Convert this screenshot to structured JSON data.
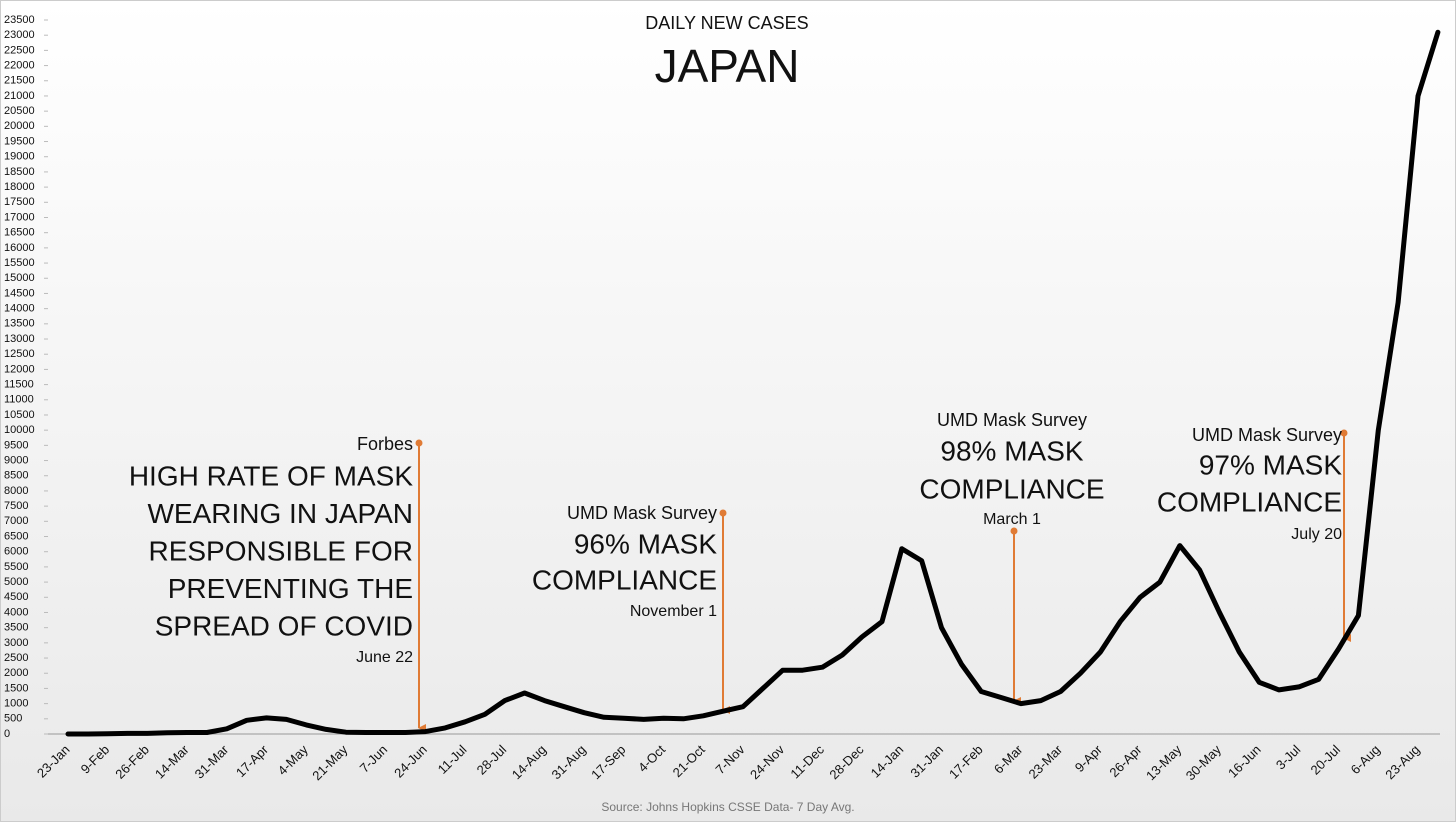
{
  "chart_data": {
    "type": "line",
    "subtitle": "DAILY NEW CASES",
    "title": "JAPAN",
    "source": "Source: Johns Hopkins CSSE Data- 7 Day Avg.",
    "categories": [
      "23-Jan",
      null,
      "9-Feb",
      null,
      "26-Feb",
      null,
      "14-Mar",
      null,
      "31-Mar",
      null,
      "17-Apr",
      null,
      "4-May",
      null,
      "21-May",
      null,
      "7-Jun",
      null,
      "24-Jun",
      null,
      "11-Jul",
      null,
      "28-Jul",
      null,
      "14-Aug",
      null,
      "31-Aug",
      null,
      "17-Sep",
      null,
      "4-Oct",
      null,
      "21-Oct",
      null,
      "7-Nov",
      null,
      "24-Nov",
      null,
      "11-Dec",
      null,
      "28-Dec",
      null,
      "14-Jan",
      null,
      "31-Jan",
      null,
      "17-Feb",
      null,
      "6-Mar",
      null,
      "23-Mar",
      null,
      "9-Apr",
      null,
      "26-Apr",
      null,
      "13-May",
      null,
      "30-May",
      null,
      "16-Jun",
      null,
      "3-Jul",
      null,
      "20-Jul",
      null,
      "6-Aug",
      null,
      "23-Aug",
      null
    ],
    "series": [
      {
        "color": "#000000",
        "values": [
          0,
          0,
          10,
          20,
          20,
          40,
          50,
          50,
          170,
          450,
          530,
          480,
          300,
          150,
          60,
          50,
          50,
          50,
          80,
          200,
          400,
          650,
          1100,
          1350,
          1100,
          900,
          700,
          550,
          520,
          480,
          520,
          500,
          600,
          750,
          900,
          1500,
          2100,
          2100,
          2200,
          2600,
          3200,
          3700,
          6100,
          5700,
          3500,
          2300,
          1400,
          1200,
          1000,
          1100,
          1400,
          2000,
          2700,
          3700,
          4500,
          5000,
          6200,
          5400,
          4000,
          2700,
          1700,
          1450,
          1550,
          1800,
          2800,
          3900,
          10000,
          14200,
          21000,
          23100
        ]
      }
    ],
    "ylim": [
      0,
      23500
    ],
    "yticks": [
      0,
      500,
      1000,
      1500,
      2000,
      2500,
      3000,
      3500,
      4000,
      4500,
      5000,
      5500,
      6000,
      6500,
      7000,
      7500,
      8000,
      8500,
      9000,
      9500,
      10000,
      10500,
      11000,
      11500,
      12000,
      12500,
      13000,
      13500,
      14000,
      14500,
      15000,
      15500,
      16000,
      16500,
      17000,
      17500,
      18000,
      18500,
      19000,
      19500,
      20000,
      20500,
      21000,
      21500,
      22000,
      22500,
      23000,
      23500
    ],
    "annotations": [
      {
        "source": "Forbes",
        "headline": [
          "HIGH RATE OF MASK",
          "WEARING IN JAPAN",
          "RESPONSIBLE FOR",
          "PREVENTING THE",
          "SPREAD OF COVID"
        ],
        "date": "June 22"
      },
      {
        "source": "UMD Mask Survey",
        "headline": [
          "96% MASK",
          "COMPLIANCE"
        ],
        "date": "November 1"
      },
      {
        "source": "UMD Mask Survey",
        "headline": [
          "98% MASK",
          "COMPLIANCE"
        ],
        "date": "March 1"
      },
      {
        "source": "UMD Mask Survey",
        "headline": [
          "97% MASK",
          "COMPLIANCE"
        ],
        "date": "July 20"
      }
    ]
  }
}
